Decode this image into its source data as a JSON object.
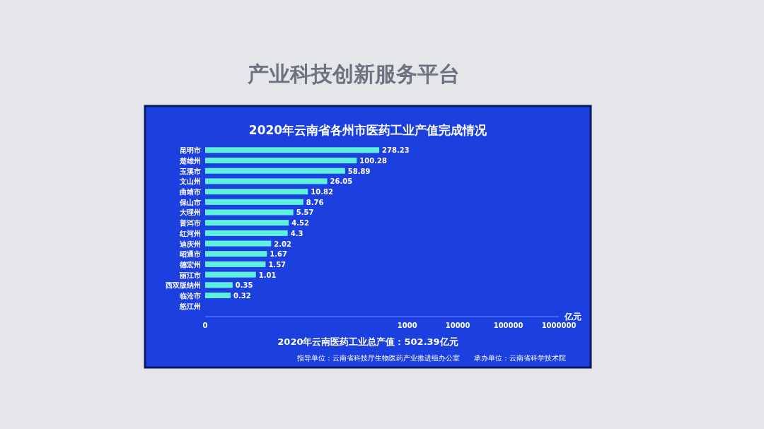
{
  "chart_data": {
    "type": "bar",
    "orientation": "horizontal",
    "title": "2020年云南省各州市医药工业产值完成情况",
    "categories": [
      "昆明市",
      "楚雄州",
      "玉溪市",
      "文山州",
      "曲靖市",
      "保山市",
      "大理州",
      "普洱市",
      "红河州",
      "迪庆州",
      "昭通市",
      "德宏州",
      "丽江市",
      "西双版纳州",
      "临沧市",
      "怒江州"
    ],
    "values": [
      278.23,
      100.28,
      58.89,
      26.05,
      10.82,
      8.76,
      5.57,
      4.52,
      4.3,
      2.02,
      1.67,
      1.57,
      1.01,
      0.35,
      0.32,
      null
    ],
    "color": "#5ef0dc",
    "data_labels": true,
    "log": "x",
    "xlim": [
      0.1,
      1000000
    ],
    "xticks": [
      {
        "value": 0.1,
        "label": "0"
      },
      1000,
      10000,
      100000,
      1000000
    ],
    "xlabel": "亿元",
    "grid": false,
    "annotations": [
      "产业科技创新服务平台",
      "2020年云南医药工业总产值：502.39亿元",
      "指导单位：云南省科技厅生物医药产业推进组办公室",
      "承办单位：云南省科学技术院"
    ]
  }
}
